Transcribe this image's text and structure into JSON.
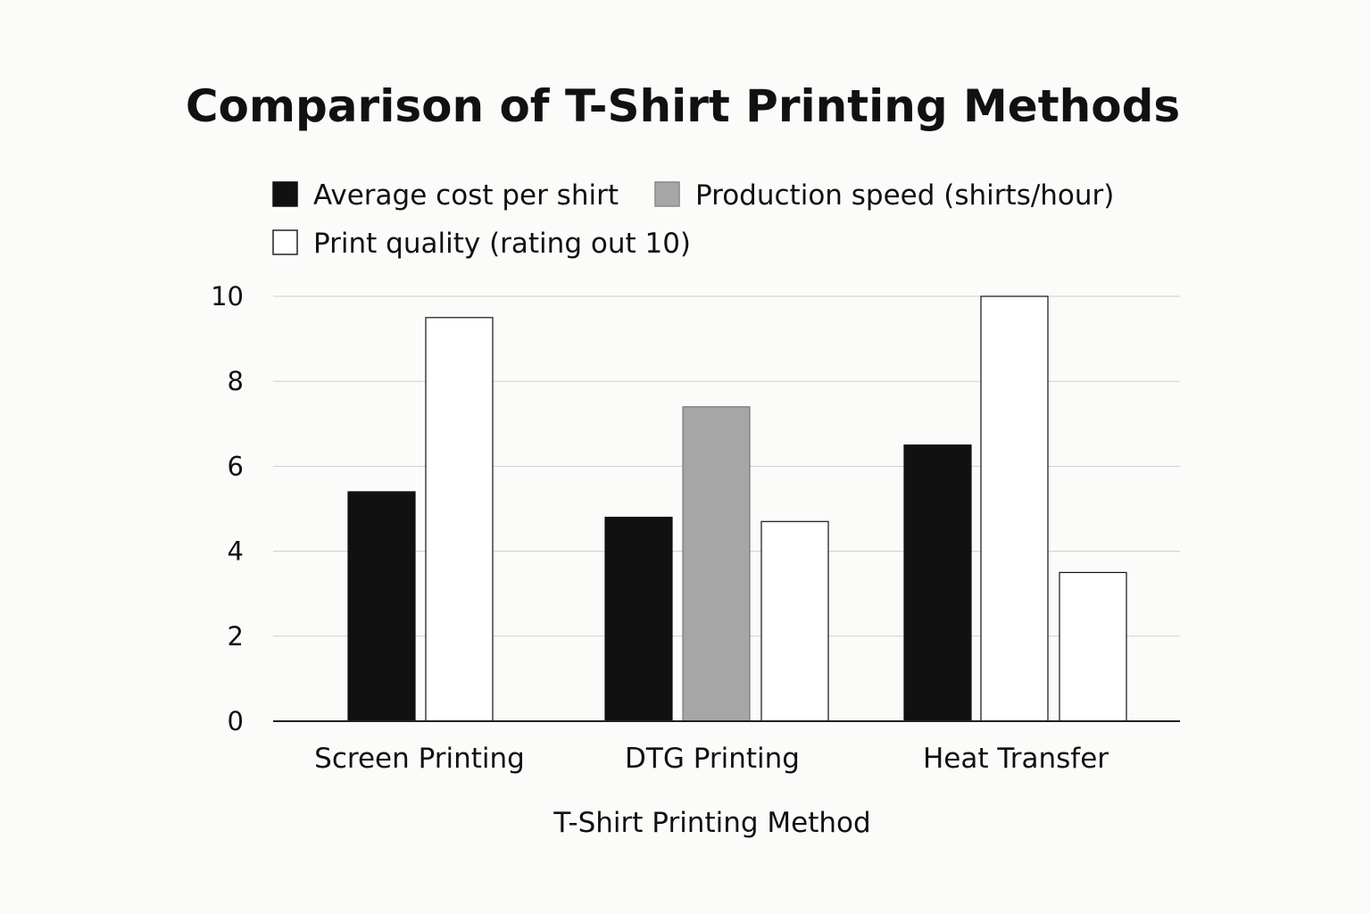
{
  "chart_data": {
    "type": "bar",
    "title": "Comparison of T-Shirt Printing Methods",
    "xlabel": "T-Shirt Printing Method",
    "ylabel": "",
    "categories": [
      "Screen Printing",
      "DTG Printing",
      "Heat Transfer"
    ],
    "series": [
      {
        "name": "Average cost per shirt",
        "color": "#111111",
        "values": [
          5.4,
          4.8,
          6.5
        ]
      },
      {
        "name": "Production speed (shirts/hour)",
        "color": "#a6a6a6",
        "values": [
          null,
          7.4,
          null
        ]
      },
      {
        "name": "Print quality (rating out 10)",
        "color": "#ffffff",
        "values": [
          9.5,
          4.7,
          10
        ]
      }
    ],
    "extra_bars": [
      {
        "category": "Heat Transfer",
        "value": 3.5,
        "color": "#ffffff"
      }
    ],
    "ylim": [
      0,
      10
    ],
    "yticks": [
      "0",
      "2",
      "4",
      "6",
      "8",
      "10"
    ],
    "grid": true,
    "legend_position": "top"
  }
}
